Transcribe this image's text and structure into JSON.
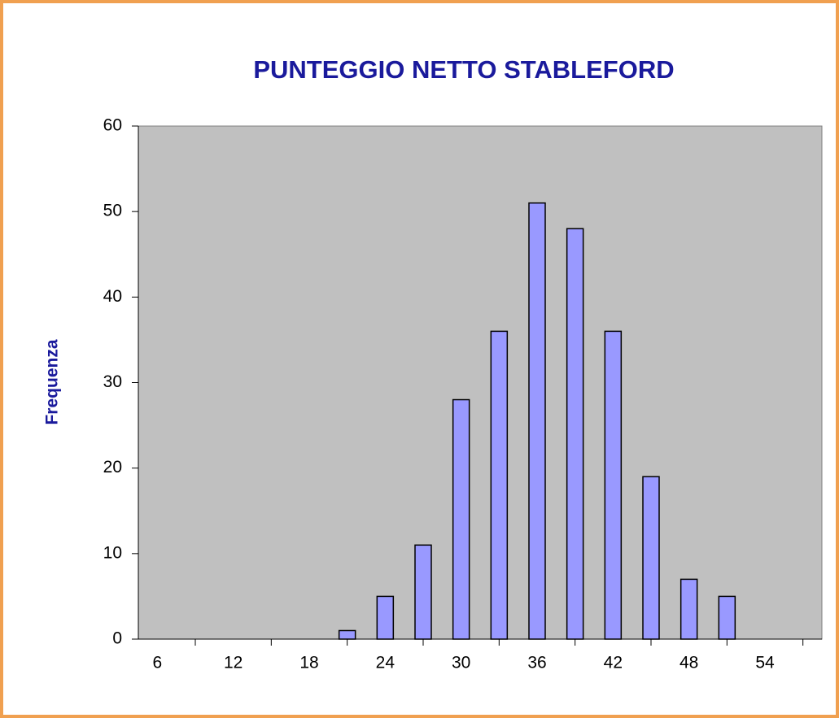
{
  "chart_data": {
    "type": "bar",
    "title": "PUNTEGGIO NETTO STABLEFORD",
    "y_label": "Frequenza",
    "categories": [
      6,
      null,
      12,
      null,
      18,
      null,
      24,
      null,
      30,
      null,
      36,
      null,
      42,
      null,
      48,
      null,
      54,
      null
    ],
    "values": [
      0,
      0,
      0,
      0,
      0,
      1,
      5,
      11,
      28,
      36,
      51,
      48,
      36,
      19,
      7,
      5,
      0,
      0
    ],
    "color": "#9999ff",
    "ylim": [
      0,
      60
    ],
    "yticks": [
      0,
      10,
      20,
      30,
      40,
      50,
      60
    ],
    "grid": false
  }
}
